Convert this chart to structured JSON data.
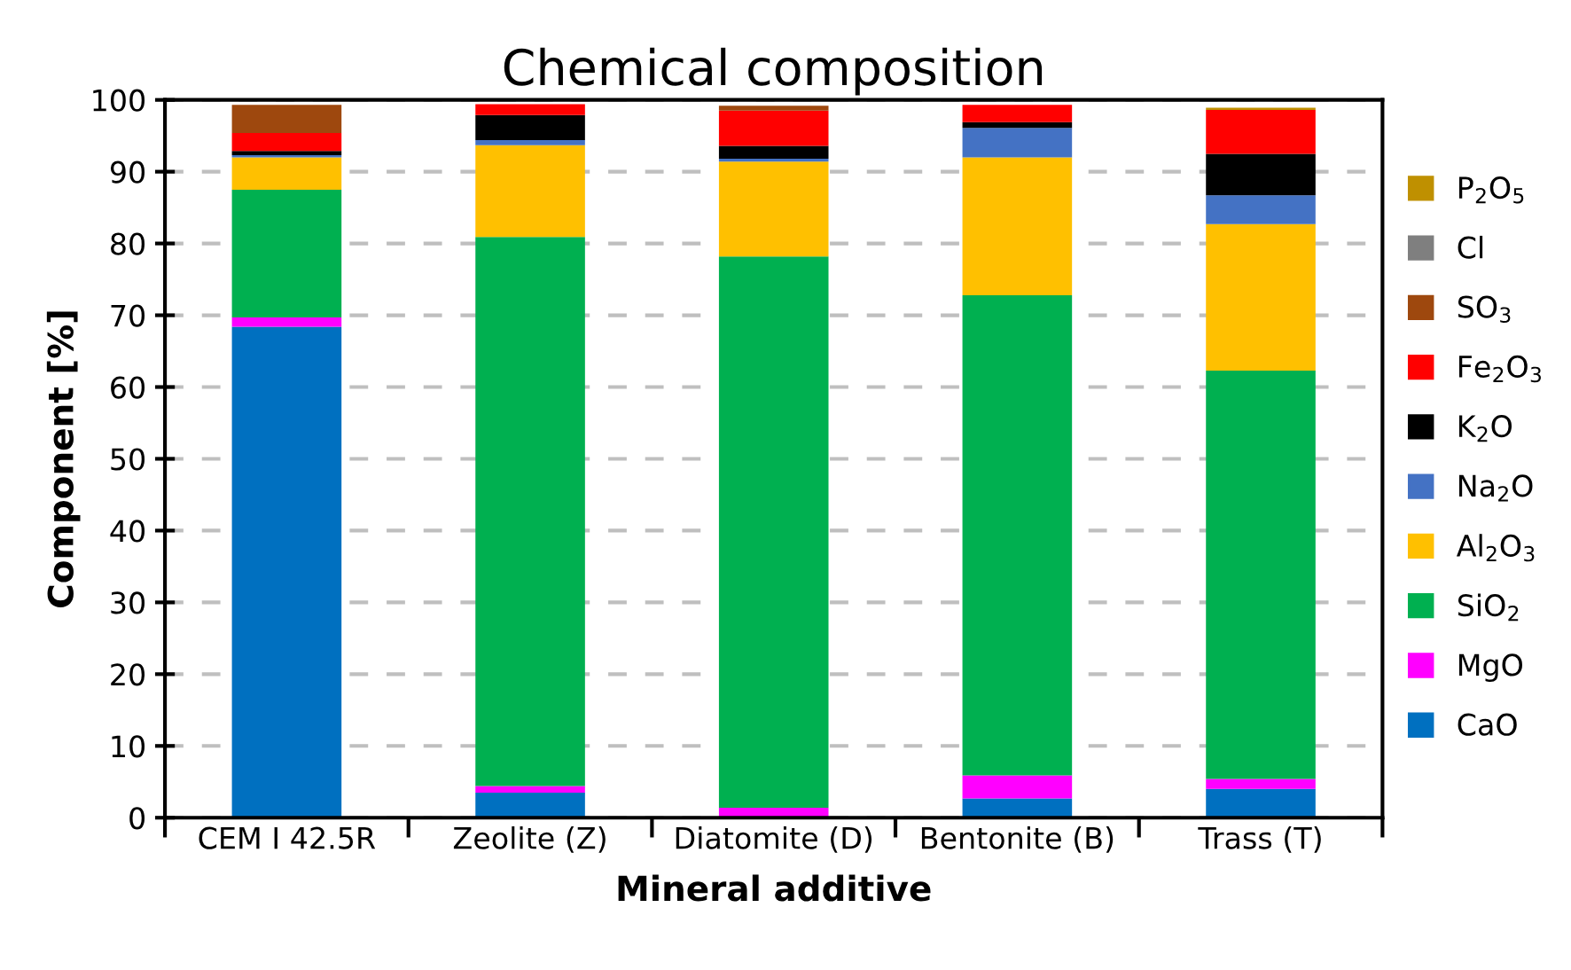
{
  "chart_data": {
    "type": "bar",
    "stacked": true,
    "title": "Chemical composition",
    "xlabel": "Mineral additive",
    "ylabel": "Component [%]",
    "categories": [
      "CEM I 42.5R",
      "Zeolite (Z)",
      "Diatomite (D)",
      "Bentonite (B)",
      "Trass (T)"
    ],
    "series": [
      {
        "name": "CaO",
        "color": "#0070c0",
        "values": [
          68.4,
          3.5,
          0,
          2.7,
          4.0
        ]
      },
      {
        "name": "MgO",
        "color": "#ff00ff",
        "values": [
          1.3,
          0.9,
          1.4,
          3.2,
          1.4
        ]
      },
      {
        "name": "SiO$_{2}$",
        "color": "#00b050",
        "values": [
          17.8,
          76.5,
          76.8,
          66.9,
          56.9
        ]
      },
      {
        "name": "Al$_{2}$O$_{3}$",
        "color": "#ffc000",
        "values": [
          4.5,
          12.8,
          13.2,
          19.2,
          20.4
        ]
      },
      {
        "name": "Na$_{2}$O",
        "color": "#4472c4",
        "values": [
          0.3,
          0.7,
          0.4,
          4.1,
          4.0
        ]
      },
      {
        "name": "K$_{2}$O",
        "color": "#000000",
        "values": [
          0.6,
          3.5,
          1.8,
          0.8,
          5.8
        ]
      },
      {
        "name": "Fe$_{2}$O$_{3}$",
        "color": "#ff0000",
        "values": [
          2.5,
          1.5,
          4.9,
          2.4,
          6.1
        ]
      },
      {
        "name": "SO$_{3}$",
        "color": "#9e480e",
        "values": [
          3.9,
          0,
          0.7,
          0,
          0
        ]
      },
      {
        "name": "Cl",
        "color": "#7f7f7f",
        "values": [
          0,
          0,
          0,
          0,
          0
        ]
      },
      {
        "name": "P$_{2}$O$_{5}$",
        "color": "#bf9000",
        "values": [
          0,
          0,
          0,
          0,
          0.3
        ]
      }
    ],
    "ylim": [
      0,
      100
    ],
    "yticks": [
      0,
      10,
      20,
      30,
      40,
      50,
      60,
      70,
      80,
      90,
      100
    ],
    "grid": "y",
    "legend": "right"
  }
}
